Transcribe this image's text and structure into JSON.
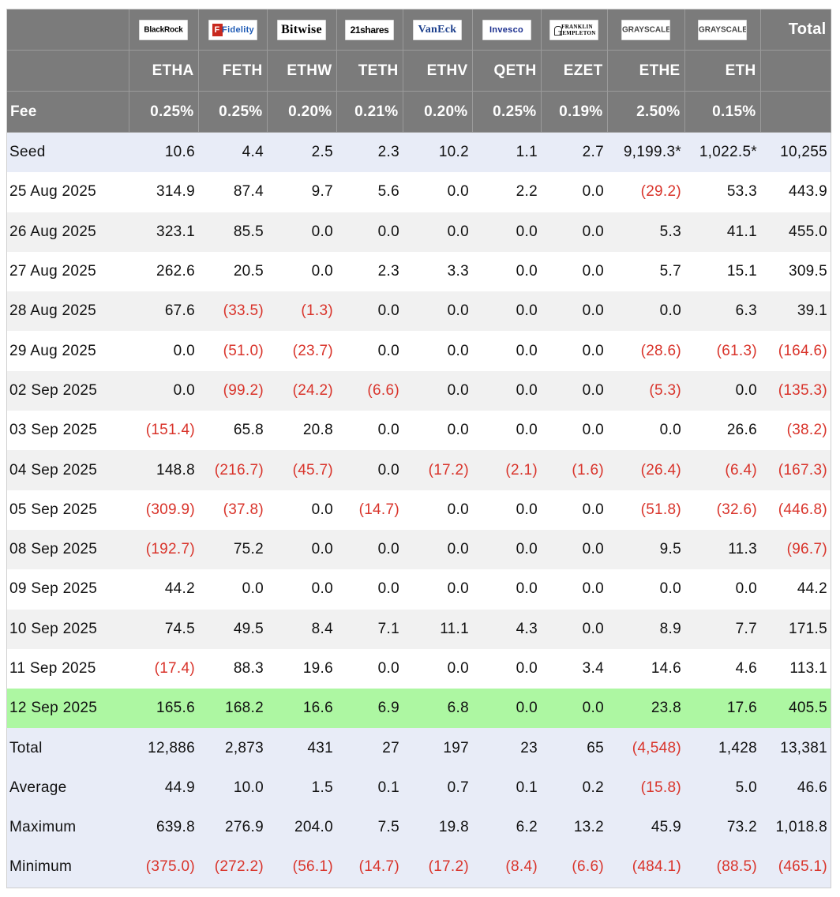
{
  "header": {
    "total_label": "Total",
    "fee_label": "Fee",
    "issuers": [
      "BlackRock",
      "Fidelity",
      "Bitwise",
      "21shares",
      "VanEck",
      "Invesco",
      "FRANKLIN TEMPLETON",
      "GRAYSCALE",
      "GRAYSCALE"
    ],
    "fidelity_mark": "F",
    "tickers": [
      "ETHA",
      "FETH",
      "ETHW",
      "TETH",
      "ETHV",
      "QETH",
      "EZET",
      "ETHE",
      "ETH"
    ],
    "fees": [
      "0.25%",
      "0.25%",
      "0.20%",
      "0.21%",
      "0.20%",
      "0.25%",
      "0.19%",
      "2.50%",
      "0.15%"
    ]
  },
  "rows": [
    {
      "label": "Seed",
      "cells": [
        "10.6",
        "4.4",
        "2.5",
        "2.3",
        "10.2",
        "1.1",
        "2.7",
        "9,199.3*",
        "1,022.5*",
        "10,255"
      ]
    },
    {
      "label": "25 Aug 2025",
      "cells": [
        "314.9",
        "87.4",
        "9.7",
        "5.6",
        "0.0",
        "2.2",
        "0.0",
        "(29.2)",
        "53.3",
        "443.9"
      ]
    },
    {
      "label": "26 Aug 2025",
      "cells": [
        "323.1",
        "85.5",
        "0.0",
        "0.0",
        "0.0",
        "0.0",
        "0.0",
        "5.3",
        "41.1",
        "455.0"
      ]
    },
    {
      "label": "27 Aug 2025",
      "cells": [
        "262.6",
        "20.5",
        "0.0",
        "2.3",
        "3.3",
        "0.0",
        "0.0",
        "5.7",
        "15.1",
        "309.5"
      ]
    },
    {
      "label": "28 Aug 2025",
      "cells": [
        "67.6",
        "(33.5)",
        "(1.3)",
        "0.0",
        "0.0",
        "0.0",
        "0.0",
        "0.0",
        "6.3",
        "39.1"
      ]
    },
    {
      "label": "29 Aug 2025",
      "cells": [
        "0.0",
        "(51.0)",
        "(23.7)",
        "0.0",
        "0.0",
        "0.0",
        "0.0",
        "(28.6)",
        "(61.3)",
        "(164.6)"
      ]
    },
    {
      "label": "02 Sep 2025",
      "cells": [
        "0.0",
        "(99.2)",
        "(24.2)",
        "(6.6)",
        "0.0",
        "0.0",
        "0.0",
        "(5.3)",
        "0.0",
        "(135.3)"
      ]
    },
    {
      "label": "03 Sep 2025",
      "cells": [
        "(151.4)",
        "65.8",
        "20.8",
        "0.0",
        "0.0",
        "0.0",
        "0.0",
        "0.0",
        "26.6",
        "(38.2)"
      ]
    },
    {
      "label": "04 Sep 2025",
      "cells": [
        "148.8",
        "(216.7)",
        "(45.7)",
        "0.0",
        "(17.2)",
        "(2.1)",
        "(1.6)",
        "(26.4)",
        "(6.4)",
        "(167.3)"
      ]
    },
    {
      "label": "05 Sep 2025",
      "cells": [
        "(309.9)",
        "(37.8)",
        "0.0",
        "(14.7)",
        "0.0",
        "0.0",
        "0.0",
        "(51.8)",
        "(32.6)",
        "(446.8)"
      ]
    },
    {
      "label": "08 Sep 2025",
      "cells": [
        "(192.7)",
        "75.2",
        "0.0",
        "0.0",
        "0.0",
        "0.0",
        "0.0",
        "9.5",
        "11.3",
        "(96.7)"
      ]
    },
    {
      "label": "09 Sep 2025",
      "cells": [
        "44.2",
        "0.0",
        "0.0",
        "0.0",
        "0.0",
        "0.0",
        "0.0",
        "0.0",
        "0.0",
        "44.2"
      ]
    },
    {
      "label": "10 Sep 2025",
      "cells": [
        "74.5",
        "49.5",
        "8.4",
        "7.1",
        "11.1",
        "4.3",
        "0.0",
        "8.9",
        "7.7",
        "171.5"
      ]
    },
    {
      "label": "11 Sep 2025",
      "cells": [
        "(17.4)",
        "88.3",
        "19.6",
        "0.0",
        "0.0",
        "0.0",
        "3.4",
        "14.6",
        "4.6",
        "113.1"
      ]
    },
    {
      "label": "12 Sep 2025",
      "cells": [
        "165.6",
        "168.2",
        "16.6",
        "6.9",
        "6.8",
        "0.0",
        "0.0",
        "23.8",
        "17.6",
        "405.5"
      ]
    },
    {
      "label": "Total",
      "cells": [
        "12,886",
        "2,873",
        "431",
        "27",
        "197",
        "23",
        "65",
        "(4,548)",
        "1,428",
        "13,381"
      ]
    },
    {
      "label": "Average",
      "cells": [
        "44.9",
        "10.0",
        "1.5",
        "0.1",
        "0.7",
        "0.1",
        "0.2",
        "(15.8)",
        "5.0",
        "46.6"
      ]
    },
    {
      "label": "Maximum",
      "cells": [
        "639.8",
        "276.9",
        "204.0",
        "7.5",
        "19.8",
        "6.2",
        "13.2",
        "45.9",
        "73.2",
        "1,018.8"
      ]
    },
    {
      "label": "Minimum",
      "cells": [
        "(375.0)",
        "(272.2)",
        "(56.1)",
        "(14.7)",
        "(17.2)",
        "(8.4)",
        "(6.6)",
        "(484.1)",
        "(88.5)",
        "(465.1)"
      ]
    }
  ],
  "colors": {
    "header_bg": "#7b7b7b",
    "negative_text": "#d9342b",
    "highlight_row": "#adf7a2",
    "summary_row": "#e8ecf7",
    "alt_row": "#f1f1f1"
  }
}
